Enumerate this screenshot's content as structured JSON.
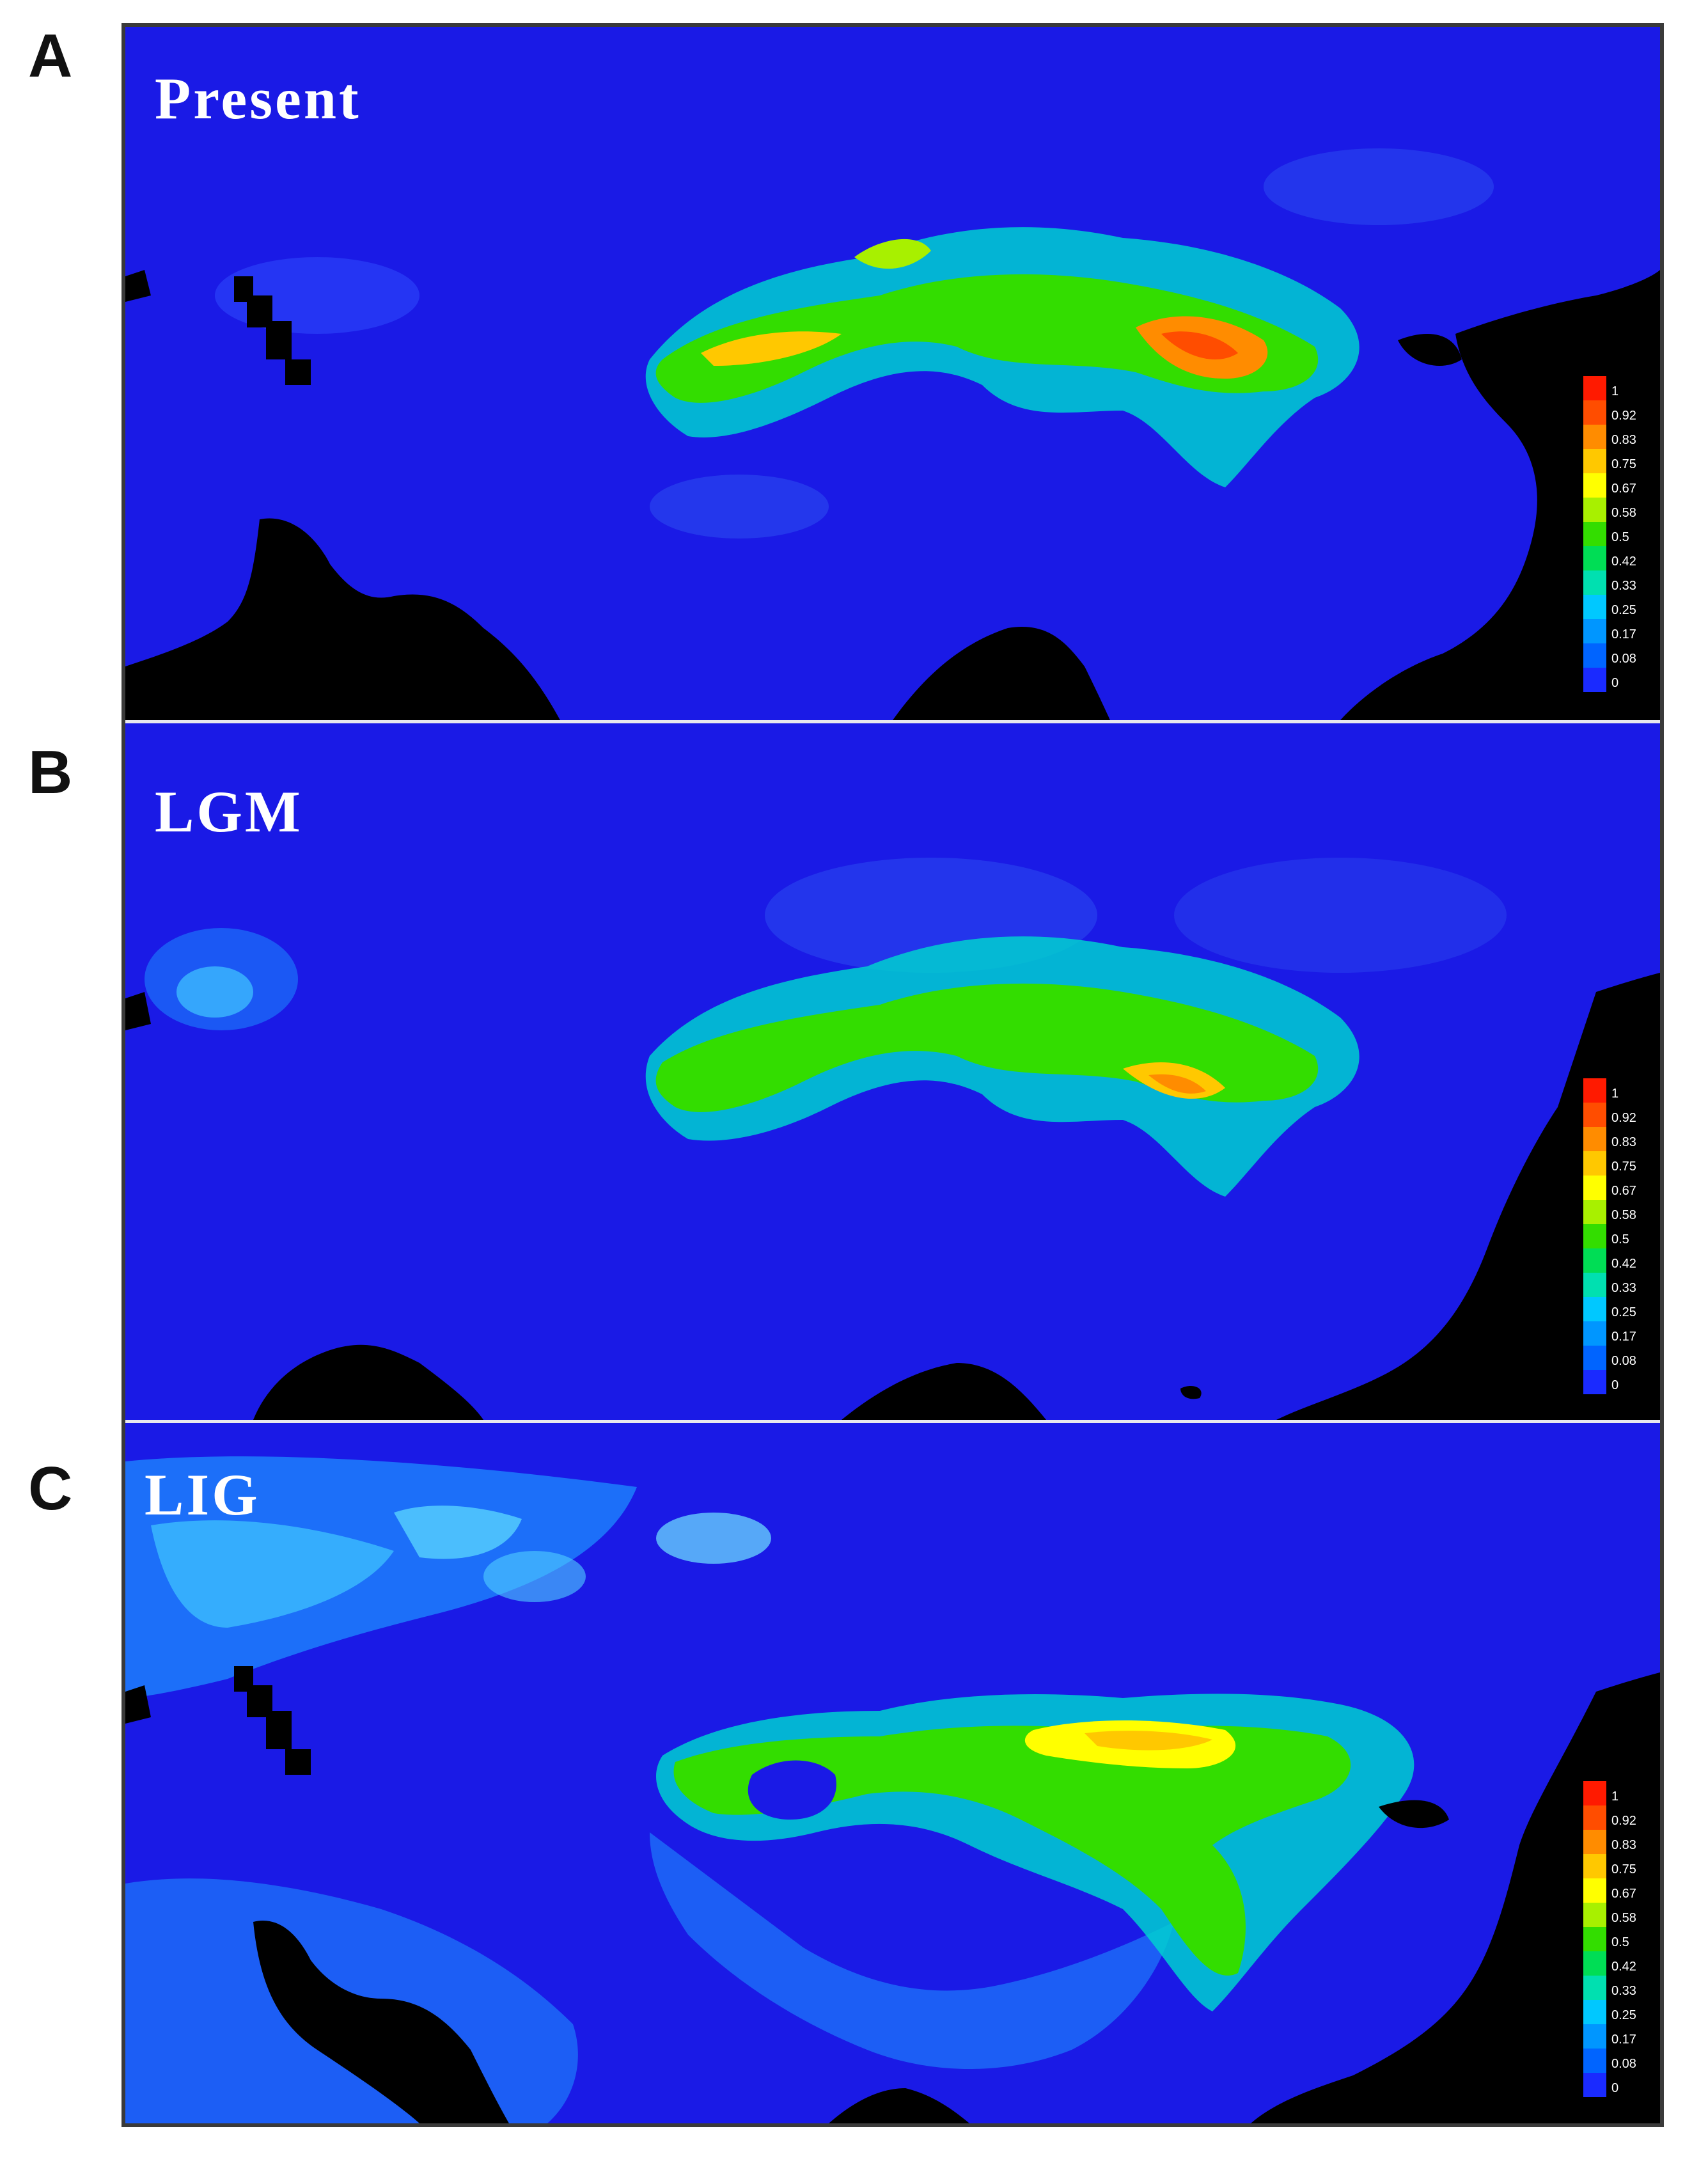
{
  "panels": [
    {
      "letter": "A",
      "title": "Present"
    },
    {
      "letter": "B",
      "title": "LGM"
    },
    {
      "letter": "C",
      "title": "LIG"
    }
  ],
  "legend": {
    "ticks": [
      "1",
      "0.92",
      "0.83",
      "0.75",
      "0.67",
      "0.58",
      "0.5",
      "0.42",
      "0.33",
      "0.25",
      "0.17",
      "0.08",
      "0"
    ],
    "colors": [
      "#ff1a00",
      "#ff4d00",
      "#ff8c00",
      "#ffc800",
      "#ffff00",
      "#a8f000",
      "#33dd00",
      "#00dd55",
      "#00e0b0",
      "#00c8ff",
      "#0096ff",
      "#0064ff",
      "#1a2aff"
    ]
  },
  "colors": {
    "ocean_background": "#1a1ae6",
    "masked": "#000000",
    "divider": "#e8e8ee"
  }
}
